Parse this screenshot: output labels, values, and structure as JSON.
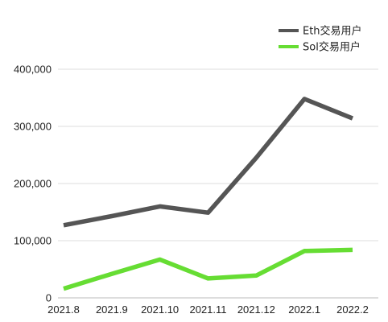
{
  "chart_data": {
    "type": "line",
    "title": "",
    "xlabel": "",
    "ylabel": "",
    "categories": [
      "2021.8",
      "2021.9",
      "2021.10",
      "2021.11",
      "2021.12",
      "2022.1",
      "2022.2"
    ],
    "ylim": [
      0,
      400000
    ],
    "yticks": [
      0,
      100000,
      200000,
      300000,
      400000
    ],
    "ytick_labels": [
      "0",
      "100,000",
      "200,000",
      "300,000",
      "400,000"
    ],
    "grid": true,
    "legend_position": "top-right",
    "series": [
      {
        "name": "Eth交易用户",
        "color": "#555555",
        "values": [
          127000,
          143000,
          160000,
          149000,
          245000,
          348000,
          314000
        ]
      },
      {
        "name": "Sol交易用户",
        "color": "#66dd33",
        "values": [
          16000,
          42000,
          67000,
          34000,
          39000,
          82000,
          84000
        ]
      }
    ]
  }
}
